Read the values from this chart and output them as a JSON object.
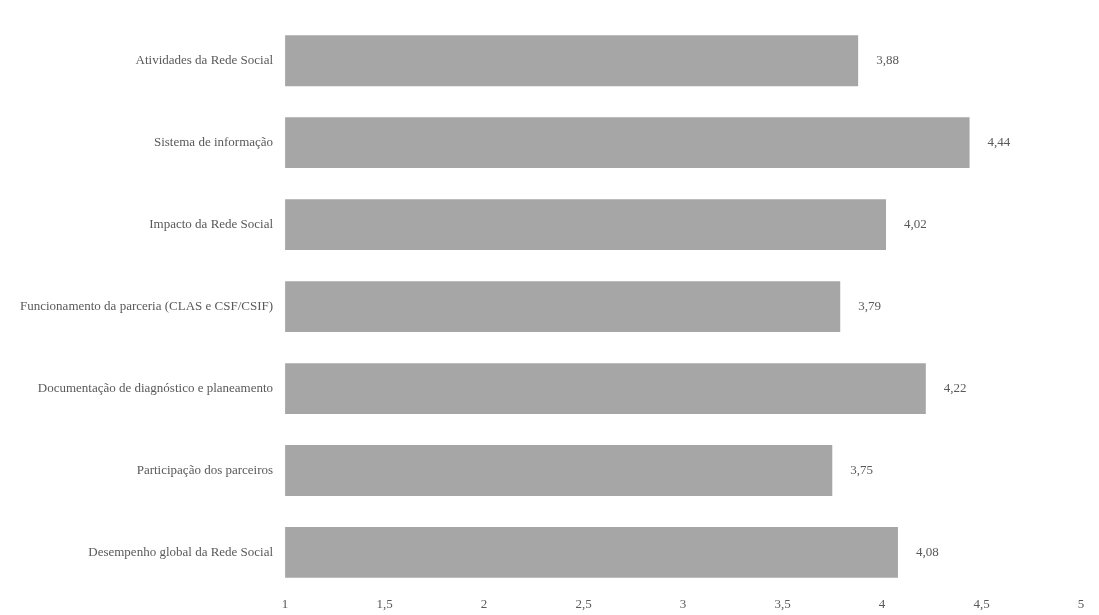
{
  "chart_data": {
    "type": "bar",
    "orientation": "horizontal",
    "categories": [
      "Atividades da Rede Social",
      "Sistema de informação",
      "Impacto da Rede Social",
      "Funcionamento da parceria (CLAS e CSF/CSIF)",
      "Documentação de diagnóstico e planeamento",
      "Participação dos parceiros",
      "Desempenho global da Rede Social"
    ],
    "values": [
      3.88,
      4.44,
      4.02,
      3.79,
      4.22,
      3.75,
      4.08
    ],
    "value_labels": [
      "3,88",
      "4,44",
      "4,02",
      "3,79",
      "4,22",
      "3,75",
      "4,08"
    ],
    "color": "#a6a6a6",
    "xlim": [
      1,
      5
    ],
    "xticks": [
      1,
      {
        "value": 1.5,
        "label": "1,5"
      },
      2,
      {
        "value": 2.5,
        "label": "2,5"
      },
      3,
      {
        "value": 3.5,
        "label": "3,5"
      },
      4,
      {
        "value": 4.5,
        "label": "4,5"
      },
      5
    ],
    "grid": false,
    "legend": false
  }
}
